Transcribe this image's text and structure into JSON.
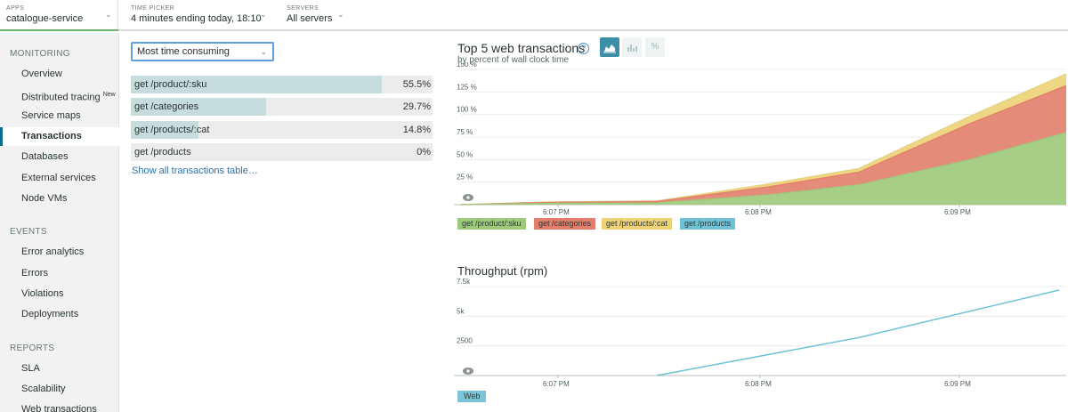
{
  "header": {
    "apps": {
      "caption": "APPS",
      "value": "catalogue-service"
    },
    "time_picker": {
      "caption": "TIME PICKER",
      "value": "4 minutes ending today, 18:10"
    },
    "servers": {
      "caption": "SERVERS",
      "value": "All servers"
    }
  },
  "sidebar": {
    "sections": [
      {
        "title": "MONITORING",
        "items": [
          "Overview",
          "Distributed tracing",
          "Service maps",
          "Transactions",
          "Databases",
          "External services",
          "Node VMs"
        ]
      },
      {
        "title": "EVENTS",
        "items": [
          "Error analytics",
          "Errors",
          "Violations",
          "Deployments"
        ]
      },
      {
        "title": "REPORTS",
        "items": [
          "SLA",
          "Scalability",
          "Web transactions"
        ]
      }
    ],
    "new_badge": "New",
    "active_item": "Transactions"
  },
  "sort_select": {
    "value": "Most time consuming"
  },
  "transactions": [
    {
      "name": "get /product/:sku",
      "percent": "55.5%",
      "fill": 0.832
    },
    {
      "name": "get /categories",
      "percent": "29.7%",
      "fill": 0.447
    },
    {
      "name": "get /products/:cat",
      "percent": "14.8%",
      "fill": 0.223
    },
    {
      "name": "get /products",
      "percent": "0%",
      "fill": 0
    }
  ],
  "show_all_link": "Show all transactions table…",
  "top5_chart": {
    "title": "Top 5 web transactions",
    "subtitle": "by percent of wall clock time",
    "help_icon": "question-circle-icon",
    "percent_button": "%",
    "chart_data": {
      "type": "area",
      "x": [
        "6:06:30 PM",
        "6:07 PM",
        "6:07:30 PM",
        "6:08 PM",
        "6:08:30 PM",
        "6:09 PM",
        "6:09:30 PM"
      ],
      "series": [
        {
          "name": "get /product/:sku",
          "color": "#9dc97a",
          "values": [
            0,
            1.5,
            2,
            11,
            22,
            50,
            80
          ]
        },
        {
          "name": "get /categories",
          "color": "#e27e6b",
          "values": [
            0,
            1,
            1.5,
            9,
            14,
            40,
            52
          ]
        },
        {
          "name": "get /products/:cat",
          "color": "#edd277",
          "values": [
            0,
            0.3,
            0.5,
            3,
            4,
            8,
            13
          ]
        },
        {
          "name": "get /products",
          "color": "#6fc2d6",
          "values": [
            0,
            0,
            0,
            0,
            0,
            0,
            0
          ]
        }
      ],
      "y_ticks": [
        "25 %",
        "50 %",
        "75 %",
        "100 %",
        "125 %",
        "150 %"
      ],
      "x_ticks": [
        "6:07 PM",
        "6:08 PM",
        "6:09 PM"
      ],
      "ylim": [
        0,
        150
      ],
      "stacked": true,
      "grid": true
    }
  },
  "throughput_chart": {
    "title": "Throughput (rpm)",
    "chart_data": {
      "type": "line",
      "x": [
        "6:07:30 PM",
        "6:08:30 PM",
        "6:09:30 PM"
      ],
      "series": [
        {
          "name": "Web",
          "color": "#6fc2d6",
          "values": [
            0,
            3200,
            7200
          ]
        }
      ],
      "y_ticks": [
        "2500",
        "5k",
        "7.5k"
      ],
      "x_ticks": [
        "6:07 PM",
        "6:08 PM",
        "6:09 PM"
      ],
      "ylim": [
        0,
        7500
      ],
      "grid": true
    }
  }
}
